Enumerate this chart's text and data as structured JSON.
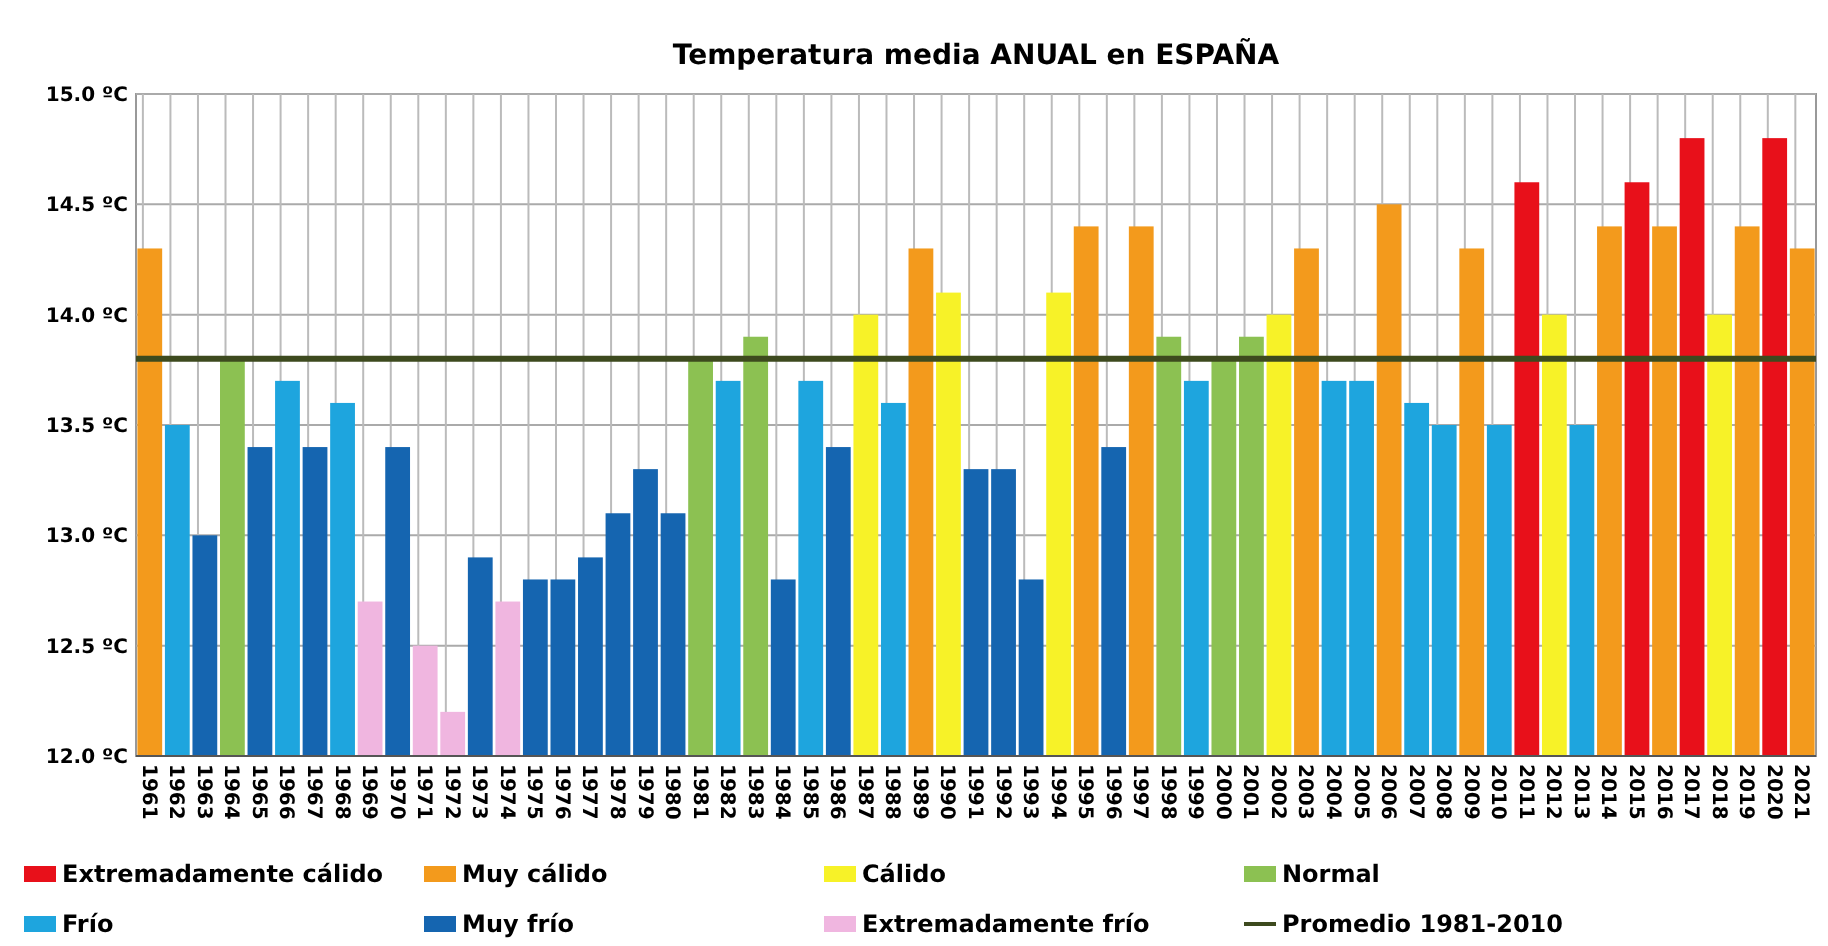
{
  "chart_data": {
    "type": "bar",
    "title": "Temperatura media ANUAL en ESPAÑA",
    "categories": [
      "1961",
      "1962",
      "1963",
      "1964",
      "1965",
      "1966",
      "1967",
      "1968",
      "1969",
      "1970",
      "1971",
      "1972",
      "1973",
      "1974",
      "1975",
      "1976",
      "1977",
      "1978",
      "1979",
      "1980",
      "1981",
      "1982",
      "1983",
      "1984",
      "1985",
      "1986",
      "1987",
      "1988",
      "1989",
      "1990",
      "1991",
      "1992",
      "1993",
      "1994",
      "1995",
      "1996",
      "1997",
      "1998",
      "1999",
      "2000",
      "2001",
      "2002",
      "2003",
      "2004",
      "2005",
      "2006",
      "2007",
      "2008",
      "2009",
      "2010",
      "2011",
      "2012",
      "2013",
      "2014",
      "2015",
      "2016",
      "2017",
      "2018",
      "2019",
      "2020",
      "2021"
    ],
    "series": [
      {
        "name": "Extremadamente cálido",
        "color": "#e8101a",
        "values": [
          null,
          null,
          null,
          null,
          null,
          null,
          null,
          null,
          null,
          null,
          null,
          null,
          null,
          null,
          null,
          null,
          null,
          null,
          null,
          null,
          null,
          null,
          null,
          null,
          null,
          null,
          null,
          null,
          null,
          null,
          null,
          null,
          null,
          null,
          null,
          null,
          null,
          null,
          null,
          null,
          null,
          null,
          null,
          null,
          null,
          null,
          null,
          null,
          null,
          null,
          14.6,
          null,
          null,
          null,
          14.6,
          null,
          14.8,
          null,
          null,
          14.8,
          null
        ]
      },
      {
        "name": "Muy cálido",
        "color": "#f39a1c",
        "values": [
          14.3,
          null,
          null,
          null,
          null,
          null,
          null,
          null,
          null,
          null,
          null,
          null,
          null,
          null,
          null,
          null,
          null,
          null,
          null,
          null,
          null,
          null,
          null,
          null,
          null,
          null,
          null,
          null,
          14.3,
          null,
          null,
          null,
          null,
          null,
          14.4,
          null,
          14.4,
          null,
          null,
          null,
          null,
          null,
          14.3,
          null,
          null,
          14.5,
          null,
          null,
          14.3,
          null,
          null,
          null,
          null,
          14.4,
          null,
          14.4,
          null,
          null,
          14.4,
          null,
          14.3
        ]
      },
      {
        "name": "Cálido",
        "color": "#f7f228",
        "values": [
          null,
          null,
          null,
          null,
          null,
          null,
          null,
          null,
          null,
          null,
          null,
          null,
          null,
          null,
          null,
          null,
          null,
          null,
          null,
          null,
          null,
          null,
          null,
          null,
          null,
          null,
          14.0,
          null,
          null,
          14.1,
          null,
          null,
          null,
          14.1,
          null,
          null,
          null,
          null,
          null,
          null,
          null,
          14.0,
          null,
          null,
          null,
          null,
          null,
          null,
          null,
          null,
          null,
          14.0,
          null,
          null,
          null,
          null,
          null,
          14.0,
          null,
          null,
          null
        ]
      },
      {
        "name": "Normal",
        "color": "#8cc152",
        "values": [
          null,
          null,
          null,
          13.8,
          null,
          null,
          null,
          null,
          null,
          null,
          null,
          null,
          null,
          null,
          null,
          null,
          null,
          null,
          null,
          null,
          13.8,
          null,
          13.9,
          null,
          null,
          null,
          null,
          null,
          null,
          null,
          null,
          null,
          null,
          null,
          null,
          null,
          null,
          13.9,
          null,
          13.8,
          13.9,
          null,
          null,
          null,
          null,
          null,
          null,
          null,
          null,
          null,
          null,
          null,
          null,
          null,
          null,
          null,
          null,
          null,
          null,
          null,
          null
        ]
      },
      {
        "name": "Frío",
        "color": "#1ea5de",
        "values": [
          null,
          13.5,
          null,
          null,
          null,
          13.7,
          null,
          13.6,
          null,
          null,
          null,
          null,
          null,
          null,
          null,
          null,
          null,
          null,
          null,
          null,
          null,
          13.7,
          null,
          null,
          13.7,
          null,
          null,
          13.6,
          null,
          null,
          null,
          null,
          null,
          null,
          null,
          null,
          null,
          null,
          13.7,
          null,
          null,
          null,
          null,
          13.7,
          13.7,
          null,
          13.6,
          13.5,
          null,
          13.5,
          null,
          null,
          13.5,
          null,
          null,
          null,
          null,
          null,
          null,
          null,
          null
        ]
      },
      {
        "name": "Muy frío",
        "color": "#1565b0",
        "values": [
          null,
          null,
          13.0,
          null,
          13.4,
          null,
          13.4,
          null,
          null,
          13.4,
          null,
          null,
          12.9,
          null,
          12.8,
          12.8,
          12.9,
          13.1,
          13.3,
          13.1,
          null,
          null,
          null,
          12.8,
          null,
          13.4,
          null,
          null,
          null,
          null,
          13.3,
          13.3,
          12.8,
          null,
          null,
          13.4,
          null,
          null,
          null,
          null,
          null,
          null,
          null,
          null,
          null,
          null,
          null,
          null,
          null,
          null,
          null,
          null,
          null,
          null,
          null,
          null,
          null,
          null,
          null,
          null,
          null
        ]
      },
      {
        "name": "Extremadamente frío",
        "color": "#f0b6e0",
        "values": [
          null,
          null,
          null,
          null,
          null,
          null,
          null,
          null,
          12.7,
          null,
          12.5,
          12.2,
          null,
          12.7,
          null,
          null,
          null,
          null,
          null,
          null,
          null,
          null,
          null,
          null,
          null,
          null,
          null,
          null,
          null,
          null,
          null,
          null,
          null,
          null,
          null,
          null,
          null,
          null,
          null,
          null,
          null,
          null,
          null,
          null,
          null,
          null,
          null,
          null,
          null,
          null,
          null,
          null,
          null,
          null,
          null,
          null,
          null,
          null,
          null,
          null,
          null
        ]
      }
    ],
    "ylim": [
      12.0,
      15.0
    ],
    "yticks": [
      {
        "value": 12.0,
        "label": "12.0 ºC"
      },
      {
        "value": 12.5,
        "label": "12.5 ºC"
      },
      {
        "value": 13.0,
        "label": "13.0 ºC"
      },
      {
        "value": 13.5,
        "label": "13.5 ºC"
      },
      {
        "value": 14.0,
        "label": "14.0 ºC"
      },
      {
        "value": 14.5,
        "label": "14.5 ºC"
      },
      {
        "value": 15.0,
        "label": "15.0 ºC"
      }
    ],
    "ref_lines": [
      {
        "axis": "y",
        "value": 13.8,
        "label": "Promedio 1981-2010",
        "color": "#3d4a1e"
      }
    ],
    "grid": true,
    "legend": "bottom"
  }
}
